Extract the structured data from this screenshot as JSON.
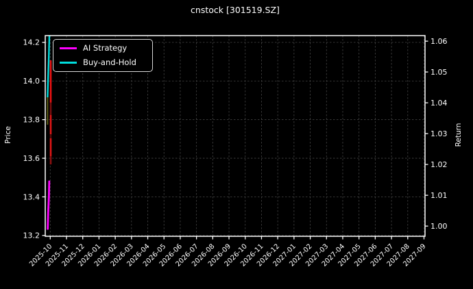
{
  "figure": {
    "title": "cnstock [301519.SZ]",
    "background": "#000000",
    "text_color": "#ffffff",
    "spine_color": "#ffffff",
    "grid_color": "#454545"
  },
  "legend": {
    "position": "upper left",
    "items": [
      {
        "label": "AI Strategy",
        "color": "#ff00ff"
      },
      {
        "label": "Buy-and-Hold",
        "color": "#00dede"
      }
    ]
  },
  "chart_data": {
    "type": "line",
    "title": "cnstock [301519.SZ]",
    "xlabel": "",
    "grid": true,
    "legend_position": "upper left",
    "left_axis": {
      "label": "Price",
      "min": 13.196,
      "max": 14.235,
      "tick_values": [
        14.2,
        14.0,
        13.8,
        13.6,
        13.4,
        13.2
      ],
      "tick_labels": [
        "14.2",
        "14.0",
        "13.8",
        "13.6",
        "13.4",
        "13.2"
      ]
    },
    "right_axis": {
      "label": "Return",
      "min": 0.9967,
      "max": 1.0618,
      "tick_values": [
        1.06,
        1.05,
        1.04,
        1.03,
        1.02,
        1.01,
        1.0
      ],
      "tick_labels": [
        "1.06",
        "1.05",
        "1.04",
        "1.03",
        "1.02",
        "1.01",
        "1.00"
      ]
    },
    "x_ticks": [
      "2025-10",
      "2025-11",
      "2025-12",
      "2026-01",
      "2026-02",
      "2026-03",
      "2026-04",
      "2026-05",
      "2026-06",
      "2026-07",
      "2026-08",
      "2026-09",
      "2026-10",
      "2026-11",
      "2026-12",
      "2027-01",
      "2027-02",
      "2027-03",
      "2027-04",
      "2027-05",
      "2027-06",
      "2027-07",
      "2027-08",
      "2027-09"
    ],
    "series": [
      {
        "name": "AI Strategy",
        "axis": "right",
        "color": "#ff00ff",
        "stroke_width": 2.8,
        "points": [
          {
            "x_frac": 0.0105,
            "value": 1.0145
          },
          {
            "x_frac": 0.0096,
            "value": 1.0096
          },
          {
            "x_frac": 0.0078,
            "value": 1.0045
          },
          {
            "x_frac": 0.0065,
            "value": 0.9991
          }
        ]
      },
      {
        "name": "Buy-and-Hold",
        "axis": "right",
        "color": "#00dede",
        "stroke_width": 2.4,
        "points": [
          {
            "x_frac": 0.0108,
            "value": 1.0616
          },
          {
            "x_frac": 0.0094,
            "value": 1.0549
          },
          {
            "x_frac": 0.0076,
            "value": 1.0482
          },
          {
            "x_frac": 0.0061,
            "value": 1.0418
          }
        ],
        "fade_tail": {
          "x_frac": 0.0061,
          "from": 1.0418,
          "to": 1.0329,
          "color": "#5c5c14",
          "stroke_width": 2
        }
      },
      {
        "name": "Price candlesticks (compressed)",
        "axis": "left",
        "x_frac": 0.0144,
        "stroke_width": 2.6,
        "segments": [
          {
            "from": 14.107,
            "to": 13.888,
            "color": "#ee1212"
          },
          {
            "from": 13.888,
            "to": 13.824,
            "color": "#7a0e0e"
          },
          {
            "from": 13.824,
            "to": 13.724,
            "color": "#e01616"
          },
          {
            "from": 13.724,
            "to": 13.703,
            "color": "#5a0b0b"
          },
          {
            "from": 13.703,
            "to": 13.611,
            "color": "#e01616"
          },
          {
            "from": 13.611,
            "to": 13.568,
            "color": "#8f1010"
          }
        ]
      }
    ]
  }
}
